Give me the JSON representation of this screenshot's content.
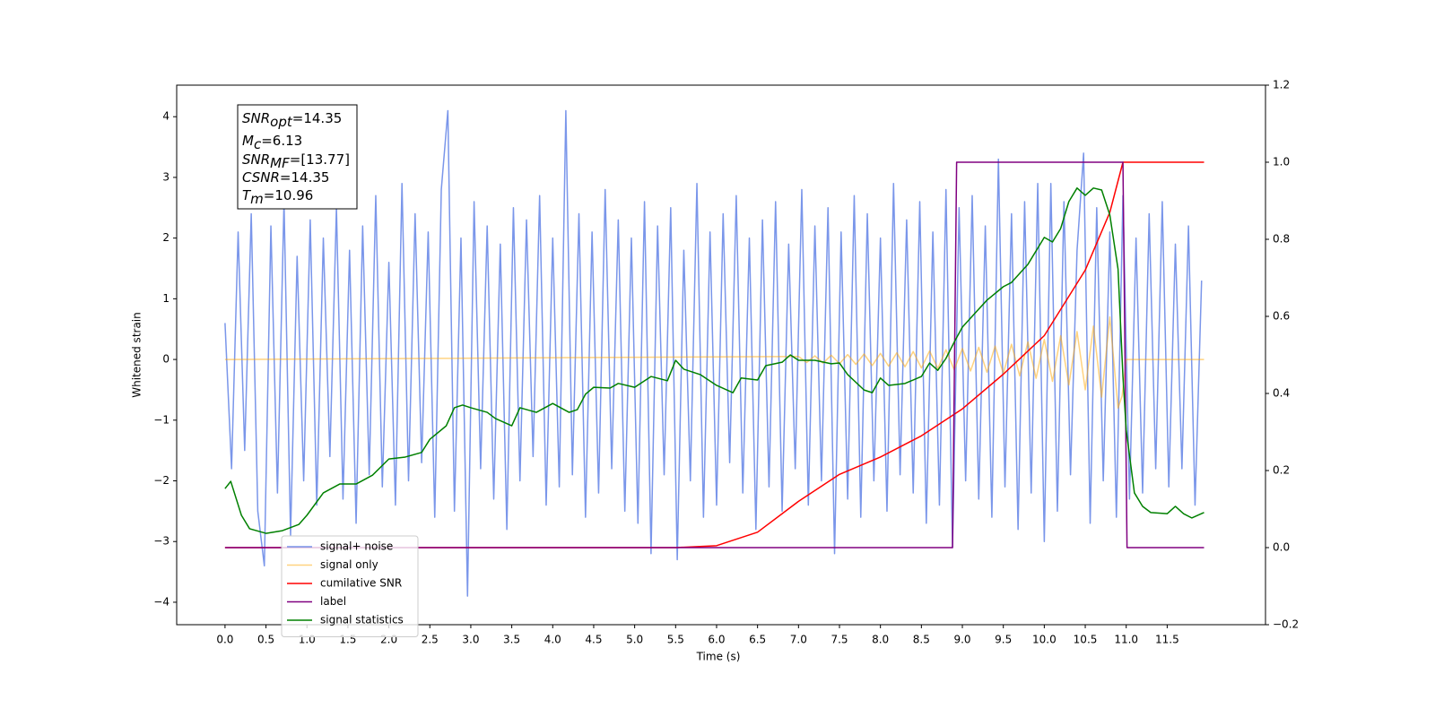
{
  "chart_data": {
    "type": "line",
    "xlabel": "Time (s)",
    "ylabel": "Whitened strain",
    "xlim": [
      -0.59,
      12.7
    ],
    "ylim": [
      -4.37,
      4.52
    ],
    "y2lim": [
      -0.2,
      1.2
    ],
    "xticks": [
      {
        "value": 0,
        "label": "0.0"
      },
      0.5,
      {
        "value": 1,
        "label": "1.0"
      },
      1.5,
      {
        "value": 2,
        "label": "2.0"
      },
      2.5,
      {
        "value": 3,
        "label": "3.0"
      },
      3.5,
      {
        "value": 4,
        "label": "4.0"
      },
      4.5,
      {
        "value": 5,
        "label": "5.0"
      },
      5.5,
      {
        "value": 6,
        "label": "6.0"
      },
      6.5,
      {
        "value": 7,
        "label": "7.0"
      },
      7.5,
      {
        "value": 8,
        "label": "8.0"
      },
      8.5,
      {
        "value": 9,
        "label": "9.0"
      },
      9.5,
      {
        "value": 10,
        "label": "10.0"
      },
      10.5,
      {
        "value": 11,
        "label": "11.0"
      },
      11.5
    ],
    "yticks": [
      {
        "value": -4,
        "label": "−4"
      },
      {
        "value": -3,
        "label": "−3"
      },
      {
        "value": -2,
        "label": "−2"
      },
      {
        "value": -1,
        "label": "−1"
      },
      0,
      1,
      2,
      3,
      4
    ],
    "y2ticks": [
      {
        "value": -0.2,
        "label": "−0.2"
      },
      {
        "value": 0,
        "label": "0.0"
      },
      0.2,
      0.4,
      0.6,
      0.8,
      {
        "value": 1,
        "label": "1.0"
      },
      1.2
    ],
    "legend": "lower left",
    "annotation": [
      {
        "symbol": "SNR",
        "subscript": "opt",
        "value": "=14.35"
      },
      {
        "symbol": "M",
        "subscript": "c",
        "value": "=6.13"
      },
      {
        "symbol": "SNR",
        "subscript": "MF",
        "value": "=[13.77]"
      },
      {
        "symbol": "CSNR",
        "value": "=14.35"
      },
      {
        "symbol": "T",
        "subscript": "m",
        "value": "=10.96"
      }
    ],
    "series": [
      {
        "name": "signal+ noise",
        "color": "#4169e1",
        "alpha": 0.7,
        "x": [
          0,
          0.08,
          0.16,
          0.24,
          0.32,
          0.4,
          0.48,
          0.56,
          0.64,
          0.72,
          0.8,
          0.88,
          0.96,
          1.04,
          1.12,
          1.2,
          1.28,
          1.36,
          1.44,
          1.52,
          1.6,
          1.68,
          1.76,
          1.84,
          1.92,
          2,
          2.08,
          2.16,
          2.24,
          2.32,
          2.4,
          2.48,
          2.56,
          2.64,
          2.72,
          2.8,
          2.88,
          2.96,
          3.04,
          3.12,
          3.2,
          3.28,
          3.36,
          3.44,
          3.52,
          3.6,
          3.68,
          3.76,
          3.84,
          3.92,
          4,
          4.08,
          4.16,
          4.24,
          4.32,
          4.4,
          4.48,
          4.56,
          4.64,
          4.72,
          4.8,
          4.88,
          4.96,
          5.04,
          5.12,
          5.2,
          5.28,
          5.36,
          5.44,
          5.52,
          5.6,
          5.68,
          5.76,
          5.84,
          5.92,
          6,
          6.08,
          6.16,
          6.24,
          6.32,
          6.4,
          6.48,
          6.56,
          6.64,
          6.72,
          6.8,
          6.88,
          6.96,
          7.04,
          7.12,
          7.2,
          7.28,
          7.36,
          7.44,
          7.52,
          7.6,
          7.68,
          7.76,
          7.84,
          7.92,
          8,
          8.08,
          8.16,
          8.24,
          8.32,
          8.4,
          8.48,
          8.56,
          8.64,
          8.72,
          8.8,
          8.88,
          8.96,
          9.04,
          9.12,
          9.2,
          9.28,
          9.36,
          9.44,
          9.52,
          9.6,
          9.68,
          9.76,
          9.84,
          9.92,
          10,
          10.08,
          10.16,
          10.24,
          10.32,
          10.4,
          10.48,
          10.56,
          10.64,
          10.72,
          10.8,
          10.88,
          10.96,
          11.04,
          11.12,
          11.2,
          11.28,
          11.36,
          11.44,
          11.52,
          11.6,
          11.68,
          11.76,
          11.84,
          11.92
        ],
        "values": [
          0.6,
          -1.8,
          2.1,
          -1.5,
          2.4,
          -2.5,
          -3.4,
          2.2,
          -2.2,
          2.6,
          -2.9,
          1.7,
          -2.0,
          2.3,
          -2.4,
          2.0,
          -1.6,
          2.5,
          -2.3,
          1.8,
          -2.7,
          2.2,
          -1.9,
          2.7,
          -2.1,
          1.6,
          -2.4,
          2.9,
          -2.0,
          2.4,
          -1.7,
          2.1,
          -2.6,
          2.8,
          4.1,
          -2.5,
          2.0,
          -3.9,
          2.6,
          -1.8,
          2.2,
          -2.3,
          1.9,
          -2.8,
          2.5,
          -2.0,
          2.3,
          -1.6,
          2.7,
          -2.4,
          2.0,
          -2.1,
          4.1,
          -1.9,
          2.4,
          -2.6,
          2.1,
          -2.2,
          2.8,
          -1.8,
          2.3,
          -2.5,
          2.0,
          -2.7,
          2.6,
          -3.2,
          2.2,
          -1.9,
          2.5,
          -3.3,
          1.8,
          -2.0,
          2.9,
          -2.6,
          2.1,
          -2.4,
          2.4,
          -1.7,
          2.7,
          -2.2,
          2.0,
          -2.8,
          2.3,
          -2.1,
          2.6,
          -2.5,
          1.9,
          -1.8,
          2.8,
          -2.4,
          2.2,
          -2.0,
          2.5,
          -3.2,
          2.1,
          -2.3,
          2.7,
          -2.6,
          2.4,
          -2.0,
          2.0,
          -2.5,
          2.9,
          -1.9,
          2.3,
          -2.2,
          2.6,
          -2.7,
          2.1,
          -2.4,
          2.8,
          -3.1,
          2.5,
          -2.0,
          2.7,
          -2.3,
          2.2,
          -2.6,
          3.3,
          -2.1,
          2.4,
          -2.8,
          2.6,
          -2.2,
          2.9,
          -3.0,
          2.9,
          -2.5,
          2.6,
          -1.9,
          1.8,
          3.4,
          -2.7,
          2.5,
          -2.0,
          2.1,
          -2.6,
          2.7,
          -2.3,
          2.0,
          -2.2,
          2.4,
          -1.8,
          2.6,
          -2.1,
          1.9,
          -1.8,
          2.2,
          -2.4,
          1.3
        ]
      },
      {
        "name": "signal only",
        "color": "#ffa500",
        "alpha": 0.5,
        "x": [
          0,
          7,
          7.1,
          7.2,
          7.3,
          7.4,
          7.5,
          7.6,
          7.7,
          7.8,
          7.9,
          8,
          8.1,
          8.2,
          8.3,
          8.4,
          8.5,
          8.6,
          8.7,
          8.8,
          8.9,
          9,
          9.1,
          9.2,
          9.3,
          9.4,
          9.5,
          9.6,
          9.7,
          9.8,
          9.9,
          10,
          10.1,
          10.2,
          10.3,
          10.4,
          10.5,
          10.6,
          10.7,
          10.8,
          10.9,
          10.95,
          11,
          11.95
        ],
        "values": [
          0,
          0.05,
          -0.05,
          0.06,
          -0.06,
          0.07,
          -0.07,
          0.08,
          -0.08,
          0.09,
          -0.1,
          0.1,
          -0.11,
          0.11,
          -0.12,
          0.13,
          -0.14,
          0.14,
          -0.15,
          0.16,
          -0.17,
          0.18,
          -0.19,
          0.2,
          -0.21,
          0.22,
          -0.23,
          0.25,
          -0.27,
          0.29,
          -0.31,
          0.33,
          -0.36,
          0.39,
          -0.42,
          0.46,
          -0.5,
          0.55,
          -0.62,
          0.7,
          -0.8,
          -0.6,
          0,
          0
        ]
      },
      {
        "name": "cumilative SNR",
        "color": "#ff0000",
        "axis": "y2",
        "x": [
          0,
          5.5,
          6,
          6.5,
          7,
          7.5,
          8,
          8.5,
          9,
          9.5,
          10,
          10.5,
          10.8,
          10.96,
          11.95
        ],
        "values": [
          0,
          0,
          0.005,
          0.04,
          0.12,
          0.19,
          0.235,
          0.29,
          0.36,
          0.45,
          0.55,
          0.72,
          0.87,
          1,
          1
        ]
      },
      {
        "name": "label",
        "color": "#800080",
        "axis": "y2",
        "x": [
          0,
          8.88,
          8.93,
          10.96,
          11.01,
          11.95
        ],
        "values": [
          0,
          0,
          1,
          1,
          0,
          0
        ]
      },
      {
        "name": "signal statistics",
        "color": "#008000",
        "axis": "y2",
        "x": [
          0,
          0.07,
          0.2,
          0.3,
          0.5,
          0.7,
          0.9,
          1,
          1.2,
          1.4,
          1.6,
          1.8,
          2,
          2.2,
          2.4,
          2.5,
          2.7,
          2.8,
          2.9,
          3,
          3.2,
          3.3,
          3.5,
          3.6,
          3.8,
          4,
          4.2,
          4.3,
          4.4,
          4.5,
          4.7,
          4.8,
          5,
          5.2,
          5.4,
          5.5,
          5.6,
          5.8,
          6,
          6.2,
          6.3,
          6.5,
          6.6,
          6.8,
          6.9,
          7,
          7.2,
          7.4,
          7.5,
          7.6,
          7.8,
          7.9,
          8,
          8.1,
          8.3,
          8.5,
          8.6,
          8.7,
          8.8,
          8.9,
          9,
          9.2,
          9.3,
          9.5,
          9.6,
          9.8,
          10,
          10.1,
          10.2,
          10.3,
          10.4,
          10.5,
          10.6,
          10.7,
          10.8,
          10.9,
          10.96,
          11,
          11.1,
          11.2,
          11.3,
          11.5,
          11.6,
          11.7,
          11.8,
          11.95
        ],
        "values": [
          0.153,
          0.172,
          0.084,
          0.049,
          0.037,
          0.044,
          0.06,
          0.084,
          0.142,
          0.165,
          0.165,
          0.188,
          0.23,
          0.235,
          0.247,
          0.281,
          0.316,
          0.363,
          0.37,
          0.363,
          0.351,
          0.335,
          0.316,
          0.363,
          0.351,
          0.374,
          0.351,
          0.358,
          0.398,
          0.416,
          0.414,
          0.426,
          0.416,
          0.444,
          0.433,
          0.486,
          0.463,
          0.449,
          0.421,
          0.402,
          0.44,
          0.435,
          0.472,
          0.481,
          0.5,
          0.486,
          0.486,
          0.477,
          0.479,
          0.449,
          0.409,
          0.402,
          0.44,
          0.421,
          0.426,
          0.444,
          0.479,
          0.46,
          0.491,
          0.533,
          0.572,
          0.619,
          0.642,
          0.677,
          0.688,
          0.735,
          0.805,
          0.793,
          0.828,
          0.898,
          0.933,
          0.914,
          0.933,
          0.928,
          0.863,
          0.723,
          0.444,
          0.305,
          0.142,
          0.107,
          0.091,
          0.088,
          0.107,
          0.088,
          0.077,
          0.091
        ]
      }
    ]
  }
}
